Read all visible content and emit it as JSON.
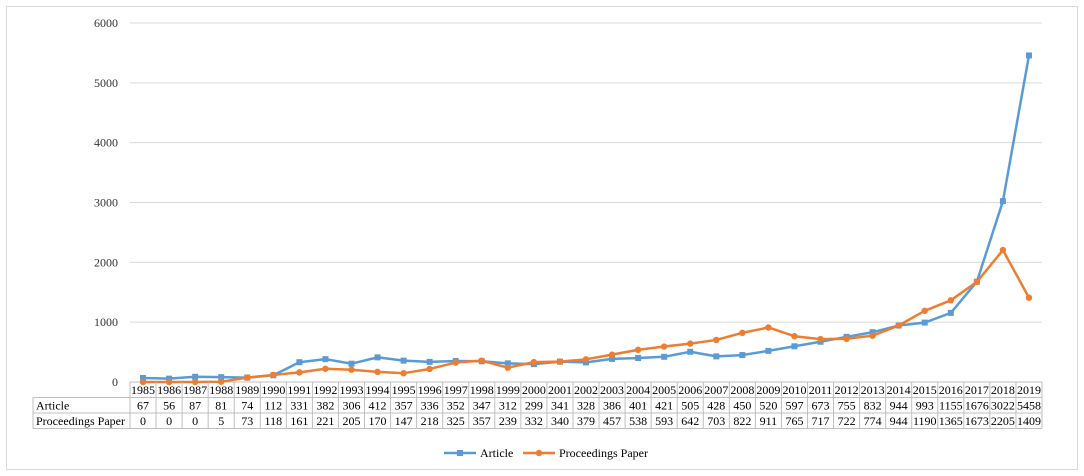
{
  "chart_data": {
    "type": "line",
    "title": "",
    "xlabel": "",
    "ylabel": "",
    "ylim": [
      0,
      6000
    ],
    "yticks": [
      0,
      1000,
      2000,
      3000,
      4000,
      5000,
      6000
    ],
    "grid": true,
    "legend": "bottom",
    "data_table": true,
    "categories": [
      "1985",
      "1986",
      "1987",
      "1988",
      "1989",
      "1990",
      "1991",
      "1992",
      "1993",
      "1994",
      "1995",
      "1996",
      "1997",
      "1998",
      "1999",
      "2000",
      "2001",
      "2002",
      "2003",
      "2004",
      "2005",
      "2006",
      "2007",
      "2008",
      "2009",
      "2010",
      "2011",
      "2012",
      "2013",
      "2014",
      "2015",
      "2016",
      "2017",
      "2018",
      "2019"
    ],
    "series": [
      {
        "name": "Article",
        "color": "#5B9BD5",
        "marker": "square",
        "values": [
          67,
          56,
          87,
          81,
          74,
          112,
          331,
          382,
          306,
          412,
          357,
          336,
          352,
          347,
          312,
          299,
          341,
          328,
          386,
          401,
          421,
          505,
          428,
          450,
          520,
          597,
          673,
          755,
          832,
          944,
          993,
          1155,
          1676,
          3022,
          5458
        ]
      },
      {
        "name": "Proceedings Paper",
        "color": "#ED7D31",
        "marker": "circle",
        "values": [
          0,
          0,
          0,
          5,
          73,
          118,
          161,
          221,
          205,
          170,
          147,
          218,
          325,
          357,
          239,
          332,
          340,
          379,
          457,
          538,
          593,
          642,
          703,
          822,
          911,
          765,
          717,
          722,
          774,
          944,
          1190,
          1365,
          1673,
          2205,
          1409
        ]
      }
    ]
  }
}
